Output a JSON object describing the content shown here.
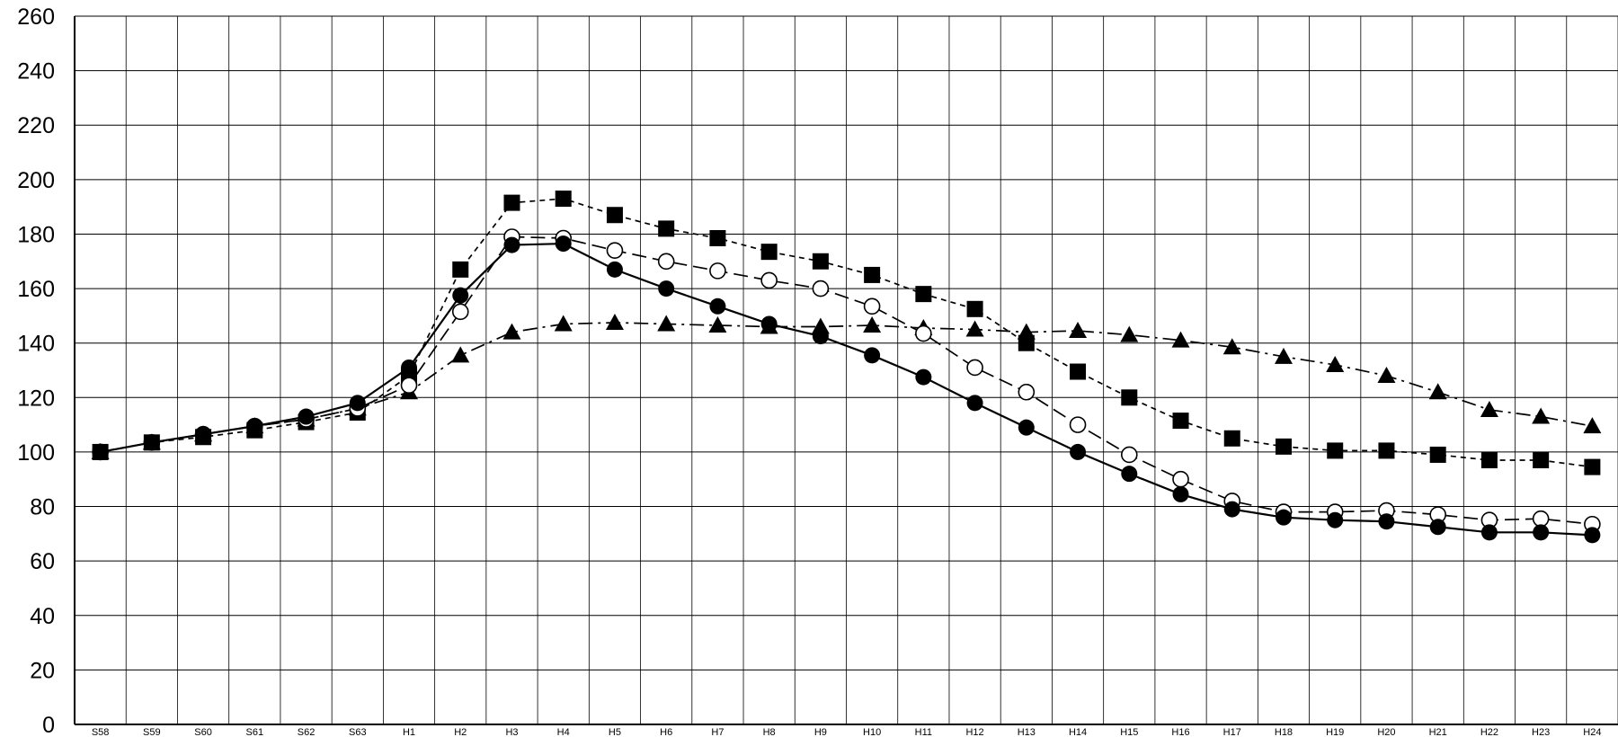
{
  "chart_data": {
    "type": "line",
    "title": "",
    "xlabel": "",
    "ylabel": "",
    "ylim": [
      0,
      260
    ],
    "yticks": [
      "0",
      "20",
      "40",
      "60",
      "80",
      "100",
      "120",
      "140",
      "160",
      "180",
      "200",
      "220",
      "240",
      "260"
    ],
    "grid": true,
    "legend": "none",
    "categories": [
      "S58",
      "S59",
      "S60",
      "S61",
      "S62",
      "S63",
      "H1",
      "H2",
      "H3",
      "H4",
      "H5",
      "H6",
      "H7",
      "H8",
      "H9",
      "H10",
      "H11",
      "H12",
      "H13",
      "H14",
      "H15",
      "H16",
      "H17",
      "H18",
      "H19",
      "H20",
      "H21",
      "H22",
      "H23",
      "H24"
    ],
    "series": [
      {
        "marker": "filled-circle",
        "line_style": "solid",
        "values": [
          100,
          103.5,
          106.5,
          109.5,
          113,
          118,
          131,
          157.5,
          176,
          176.5,
          167,
          160,
          153.5,
          147,
          142.5,
          135.5,
          127.5,
          118,
          109,
          100,
          92,
          84.5,
          79,
          76,
          75,
          74.5,
          72.5,
          70.5,
          70.5,
          69.5
        ]
      },
      {
        "marker": "open-circle",
        "line_style": "long-dash",
        "values": [
          100,
          103.5,
          106.5,
          109.5,
          112,
          116,
          124.5,
          151.5,
          179,
          178.5,
          174,
          170,
          166.5,
          163,
          160,
          153.5,
          143.5,
          131,
          122,
          110,
          99,
          90,
          82,
          78,
          78,
          78.5,
          77,
          75,
          75.5,
          73.5
        ]
      },
      {
        "marker": "filled-square",
        "line_style": "short-dash",
        "values": [
          100,
          103.5,
          105.5,
          108,
          111,
          114.5,
          128,
          167,
          191.5,
          193,
          187,
          182,
          178.5,
          173.5,
          170,
          165,
          158,
          152.5,
          140,
          129.5,
          120,
          111.5,
          105,
          102,
          100.5,
          100.5,
          99,
          97,
          97,
          94.5
        ]
      },
      {
        "marker": "filled-triangle",
        "line_style": "dash-dot",
        "values": [
          100,
          103.5,
          106.5,
          109.5,
          112,
          116,
          122,
          135.5,
          144,
          147,
          147.5,
          147,
          146.5,
          146,
          146,
          146.5,
          145.5,
          145,
          144,
          144.5,
          143,
          141,
          138.5,
          135,
          132,
          128,
          122,
          115.5,
          113,
          109.5
        ]
      }
    ]
  }
}
